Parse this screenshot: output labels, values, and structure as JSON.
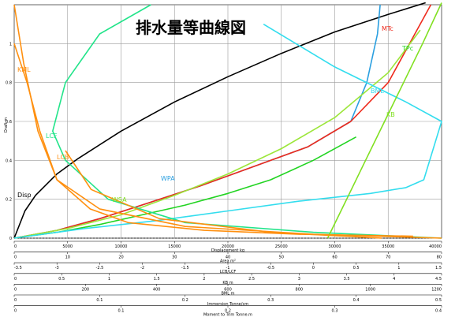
{
  "chart_data": {
    "type": "line",
    "title": "排水量等曲線図",
    "ylabel": "Draft m",
    "ylim": [
      0,
      1.2
    ],
    "y_ticks": [
      "0",
      "0.2",
      "0.4",
      "0.6",
      "0.8",
      "1"
    ],
    "grid": true,
    "legend": "none",
    "axes": [
      {
        "label": "Displacement  kg",
        "ticks": [
          "0",
          "5000",
          "10000",
          "15000",
          "20000",
          "25000",
          "30000",
          "35000",
          "40000"
        ]
      },
      {
        "label": "Area  m²",
        "ticks": [
          "0",
          "10",
          "20",
          "30",
          "40",
          "50",
          "60",
          "70",
          "80"
        ]
      },
      {
        "label": "LCB/LCF",
        "ticks": [
          "-3.5",
          "-3",
          "-2.5",
          "-2",
          "-1.5",
          "-1",
          "-0.5",
          "0",
          "0.5",
          "1",
          "1.5"
        ]
      },
      {
        "label": "KB  m",
        "ticks": [
          "0",
          "0.5",
          "1",
          "1.5",
          "2",
          "2.5",
          "3",
          "3.5",
          "4",
          "4.5"
        ]
      },
      {
        "label": "BML  m",
        "ticks": [
          "0",
          "200",
          "400",
          "600",
          "800",
          "1000",
          "1200"
        ]
      },
      {
        "label": "Immersion  Tonne/cm",
        "ticks": [
          "0",
          "0.1",
          "0.2",
          "0.3",
          "0.4",
          "0.5"
        ]
      },
      {
        "label": "Moment to Trim  Tonne.m",
        "ticks": [
          "0",
          "0.1",
          "0.2",
          "0.3",
          "0.4"
        ]
      }
    ],
    "series": [
      {
        "name": "Disp",
        "color": "#000000",
        "axis": "Displacement kg",
        "x": [
          0,
          1000,
          2000,
          4000,
          6000,
          10000,
          15000,
          20000,
          25000,
          30000,
          35000,
          38500
        ],
        "y": [
          0,
          0.14,
          0.22,
          0.33,
          0.41,
          0.55,
          0.7,
          0.83,
          0.95,
          1.06,
          1.15,
          1.21
        ]
      },
      {
        "name": "WPA",
        "color": "#2a9fe0",
        "axis": "Area m2",
        "x": [
          0,
          8,
          16,
          25,
          35,
          45,
          55,
          63,
          66,
          68,
          68.5
        ],
        "y": [
          0,
          0.04,
          0.1,
          0.18,
          0.27,
          0.37,
          0.47,
          0.6,
          0.8,
          1.05,
          1.2
        ]
      },
      {
        "name": "WSA",
        "color": "#ee2a1c",
        "axis": "Area m2",
        "x": [
          0,
          8,
          16,
          25,
          35,
          45,
          55,
          63,
          70,
          75,
          78
        ],
        "y": [
          0,
          0.04,
          0.1,
          0.18,
          0.27,
          0.37,
          0.47,
          0.6,
          0.8,
          1.05,
          1.2
        ]
      },
      {
        "name": "MTc",
        "color": "#9ce63a",
        "axis": "Moment to Trim Tonne.m",
        "x": [
          0,
          0.05,
          0.1,
          0.15,
          0.2,
          0.25,
          0.3,
          0.35,
          0.38
        ],
        "y": [
          0,
          0.05,
          0.12,
          0.22,
          0.33,
          0.46,
          0.62,
          0.85,
          1.07
        ]
      },
      {
        "name": "TPc",
        "color": "#22d422",
        "axis": "Immersion Tonne/cm",
        "x": [
          0,
          0.05,
          0.1,
          0.15,
          0.2,
          0.25,
          0.3,
          0.35,
          0.4
        ],
        "y": [
          0,
          0.03,
          0.07,
          0.12,
          0.17,
          0.23,
          0.3,
          0.4,
          0.52
        ]
      },
      {
        "name": "BML",
        "color": "#33ddee",
        "axis": "BML m",
        "x": [
          0,
          200,
          400,
          600,
          800,
          1000,
          1100,
          1150,
          1200,
          1100,
          900,
          700
        ],
        "y": [
          0,
          0.05,
          0.09,
          0.14,
          0.19,
          0.23,
          0.26,
          0.3,
          0.6,
          0.7,
          0.88,
          1.1
        ]
      },
      {
        "name": "LCF",
        "color": "#22e48a",
        "axis": "LCB/LCF",
        "x": [
          1.5,
          0.0,
          -1.5,
          -2.4,
          -2.9,
          -3.05,
          -2.9,
          -2.5,
          -1.9
        ],
        "y": [
          0,
          0.03,
          0.08,
          0.2,
          0.4,
          0.55,
          0.8,
          1.05,
          1.2
        ]
      },
      {
        "name": "LCB",
        "color": "#ff9010",
        "axis": "LCB/LCF",
        "x": [
          1.5,
          0.0,
          -1.5,
          -2.5,
          -3.0,
          -3.2,
          -3.35,
          -3.5
        ],
        "y": [
          0,
          0.02,
          0.06,
          0.15,
          0.3,
          0.55,
          0.8,
          1.0
        ]
      },
      {
        "name": "KML",
        "color": "#ff9010",
        "axis": "KB m",
        "x": [
          4.2,
          3.0,
          2.0,
          1.2,
          0.8,
          0.45,
          0.25,
          0.1,
          0.0
        ],
        "y": [
          0.01,
          0.02,
          0.04,
          0.08,
          0.15,
          0.3,
          0.55,
          0.9,
          1.2
        ]
      },
      {
        "name": "KB",
        "color": "#80e020",
        "axis": "KB m",
        "x": [
          3.3,
          3.5,
          3.7,
          3.9,
          4.1,
          4.3,
          4.5
        ],
        "y": [
          0,
          0.2,
          0.4,
          0.6,
          0.8,
          1.0,
          1.21
        ]
      },
      {
        "name": "",
        "color": "#ff9010",
        "axis": "LCB/LCF",
        "x": [
          0.8,
          -0.5,
          -1.8,
          -2.6,
          -2.9
        ],
        "y": [
          0,
          0.03,
          0.1,
          0.25,
          0.45
        ]
      }
    ],
    "curve_labels": [
      {
        "text": "KML",
        "color": "#ff9010"
      },
      {
        "text": "LCF",
        "color": "#22e48a"
      },
      {
        "text": "LCB",
        "color": "#ff9010"
      },
      {
        "text": "Disp",
        "color": "#000000"
      },
      {
        "text": "WPA",
        "color": "#2a9fe0"
      },
      {
        "text": "WSA",
        "color": "#80e020"
      },
      {
        "text": "MTc",
        "color": "#ee2a1c"
      },
      {
        "text": "TPc",
        "color": "#22d422"
      },
      {
        "text": "KB",
        "color": "#80e020"
      },
      {
        "text": "BML",
        "color": "#33ddee"
      }
    ]
  }
}
